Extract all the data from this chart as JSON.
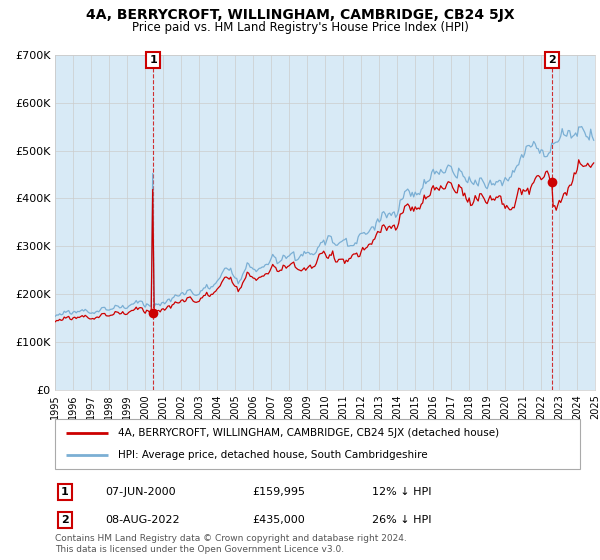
{
  "title": "4A, BERRYCROFT, WILLINGHAM, CAMBRIDGE, CB24 5JX",
  "subtitle": "Price paid vs. HM Land Registry's House Price Index (HPI)",
  "x_start_year": 1995,
  "x_end_year": 2025,
  "y_min": 0,
  "y_max": 700000,
  "y_ticks": [
    0,
    100000,
    200000,
    300000,
    400000,
    500000,
    600000,
    700000
  ],
  "y_tick_labels": [
    "£0",
    "£100K",
    "£200K",
    "£300K",
    "£400K",
    "£500K",
    "£600K",
    "£700K"
  ],
  "hpi_color": "#7bafd4",
  "hpi_fill_color": "#d8eaf6",
  "price_color": "#cc0000",
  "marker1_date": 2000.44,
  "marker1_price": 159995,
  "marker1_label": "07-JUN-2000",
  "marker1_text": "£159,995",
  "marker1_pct": "12% ↓ HPI",
  "marker2_date": 2022.6,
  "marker2_price": 435000,
  "marker2_label": "08-AUG-2022",
  "marker2_text": "£435,000",
  "marker2_pct": "26% ↓ HPI",
  "legend_line1": "4A, BERRYCROFT, WILLINGHAM, CAMBRIDGE, CB24 5JX (detached house)",
  "legend_line2": "HPI: Average price, detached house, South Cambridgeshire",
  "footnote1": "Contains HM Land Registry data © Crown copyright and database right 2024.",
  "footnote2": "This data is licensed under the Open Government Licence v3.0.",
  "background_color": "#ffffff",
  "grid_color": "#cccccc"
}
